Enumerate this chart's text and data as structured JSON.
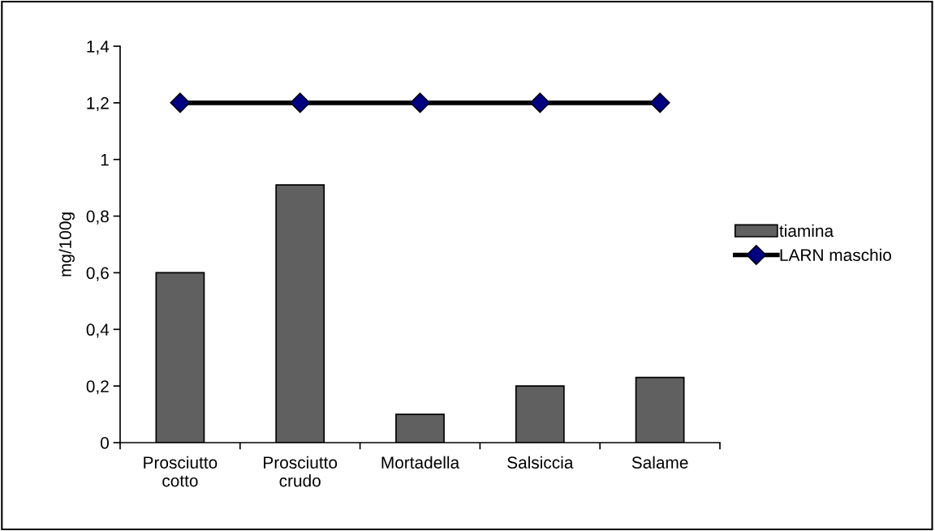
{
  "chart_data": {
    "type": "bar",
    "ylabel": "mg/100g",
    "categories": [
      "Prosciutto\ncotto",
      "Prosciutto\ncrudo",
      "Mortadella",
      "Salsiccia",
      "Salame"
    ],
    "series": [
      {
        "name": "tiamina",
        "color": "#606060",
        "values": [
          0.6,
          0.91,
          0.1,
          0.2,
          0.23
        ]
      },
      {
        "name": "LARN maschio",
        "type": "line",
        "color": "#000080",
        "marker": "diamond",
        "values": [
          1.2,
          1.2,
          1.2,
          1.2,
          1.2
        ]
      }
    ],
    "ylim": [
      0,
      1.4
    ],
    "yticks": [
      0,
      {
        "value": 0.2,
        "label": "0,2"
      },
      {
        "value": 0.4,
        "label": "0,4"
      },
      {
        "value": 0.6,
        "label": "0,6"
      },
      {
        "value": 0.8,
        "label": "0,8"
      },
      1,
      {
        "value": 1.2,
        "label": "1,2"
      },
      {
        "value": 1.4,
        "label": "1,4"
      }
    ],
    "grid": false,
    "legend": "right"
  }
}
